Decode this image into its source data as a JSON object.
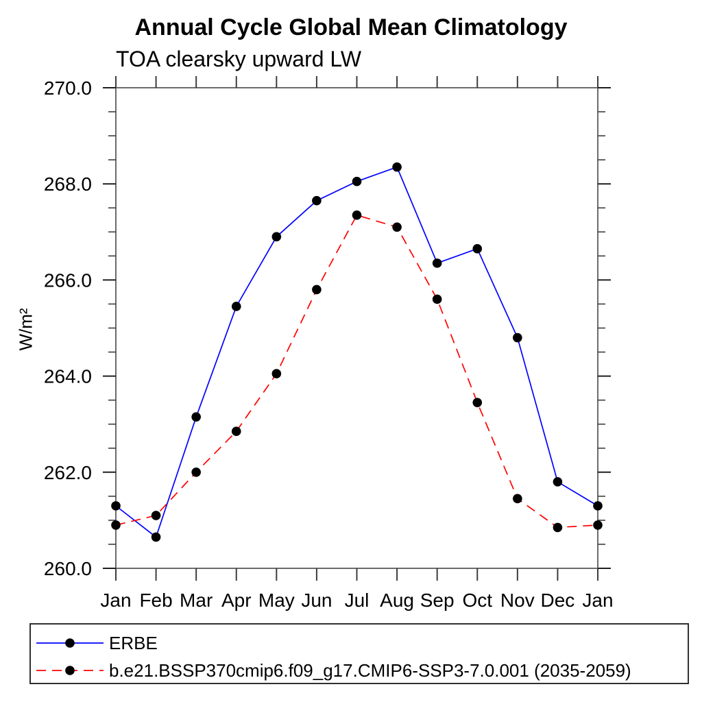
{
  "chart_data": {
    "type": "line",
    "title": "Annual Cycle Global Mean Climatology",
    "subtitle": "TOA clearsky upward LW",
    "xlabel": "",
    "ylabel": "W/m²",
    "categories": [
      "Jan",
      "Feb",
      "Mar",
      "Apr",
      "May",
      "Jun",
      "Jul",
      "Aug",
      "Sep",
      "Oct",
      "Nov",
      "Dec",
      "Jan"
    ],
    "series": [
      {
        "name": "ERBE",
        "color": "#0000ff",
        "line_style": "solid",
        "marker": "filled-circle",
        "values": [
          261.3,
          260.65,
          263.15,
          265.45,
          266.9,
          267.65,
          268.05,
          268.35,
          266.35,
          266.65,
          264.8,
          261.8,
          261.3
        ]
      },
      {
        "name": "b.e21.BSSP370cmip6.f09_g17.CMIP6-SSP3-7.0.001 (2035-2059)",
        "color": "#ff0000",
        "line_style": "dashed",
        "marker": "filled-circle",
        "values": [
          260.9,
          261.1,
          262.0,
          262.85,
          264.05,
          265.8,
          267.35,
          267.1,
          265.6,
          263.45,
          261.45,
          260.85,
          260.9
        ]
      }
    ],
    "marker_color": "#000000",
    "ylim": [
      260.0,
      270.0
    ],
    "y_major_ticks": [
      260,
      262,
      264,
      266,
      268,
      270
    ],
    "y_tick_labels": [
      "260.0",
      "262.0",
      "264.0",
      "266.0",
      "268.0",
      "270.0"
    ],
    "y_minor_step": 0.5,
    "grid": false,
    "legend_position": "bottom-box"
  }
}
